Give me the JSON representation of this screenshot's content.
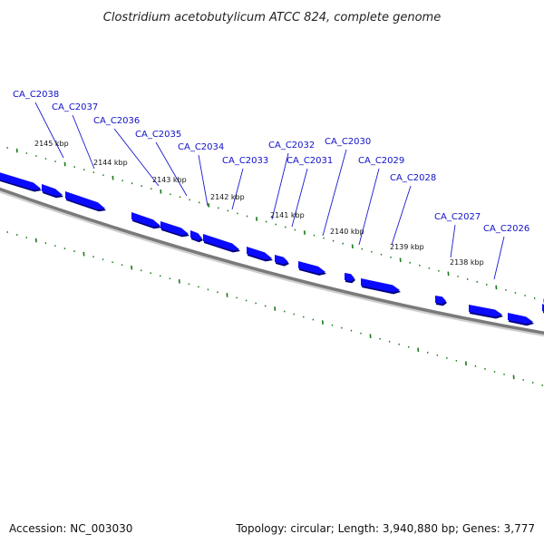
{
  "title": "Clostridium acetobutylicum ATCC 824, complete genome",
  "footer": {
    "accession": "Accession: NC_003030",
    "summary": "Topology: circular; Length: 3,940,880 bp; Genes: 3,777"
  },
  "colors": {
    "gene": "#0a0aff",
    "backbone": "#7a7a7a",
    "tick": "#1a7a1a",
    "label": "#1010c8"
  },
  "scale_labels": [
    "2145 kbp",
    "2144 kbp",
    "2143 kbp",
    "2142 kbp",
    "2141 kbp",
    "2140 kbp",
    "2139 kbp",
    "2138 kbp"
  ],
  "genes": [
    {
      "name": "CA_C2038"
    },
    {
      "name": "CA_C2037"
    },
    {
      "name": "CA_C2036"
    },
    {
      "name": "CA_C2035"
    },
    {
      "name": "CA_C2034"
    },
    {
      "name": "CA_C2033"
    },
    {
      "name": "CA_C2032"
    },
    {
      "name": "CA_C2031"
    },
    {
      "name": "CA_C2030"
    },
    {
      "name": "CA_C2029"
    },
    {
      "name": "CA_C2028"
    },
    {
      "name": "CA_C2027"
    },
    {
      "name": "CA_C2026"
    }
  ]
}
